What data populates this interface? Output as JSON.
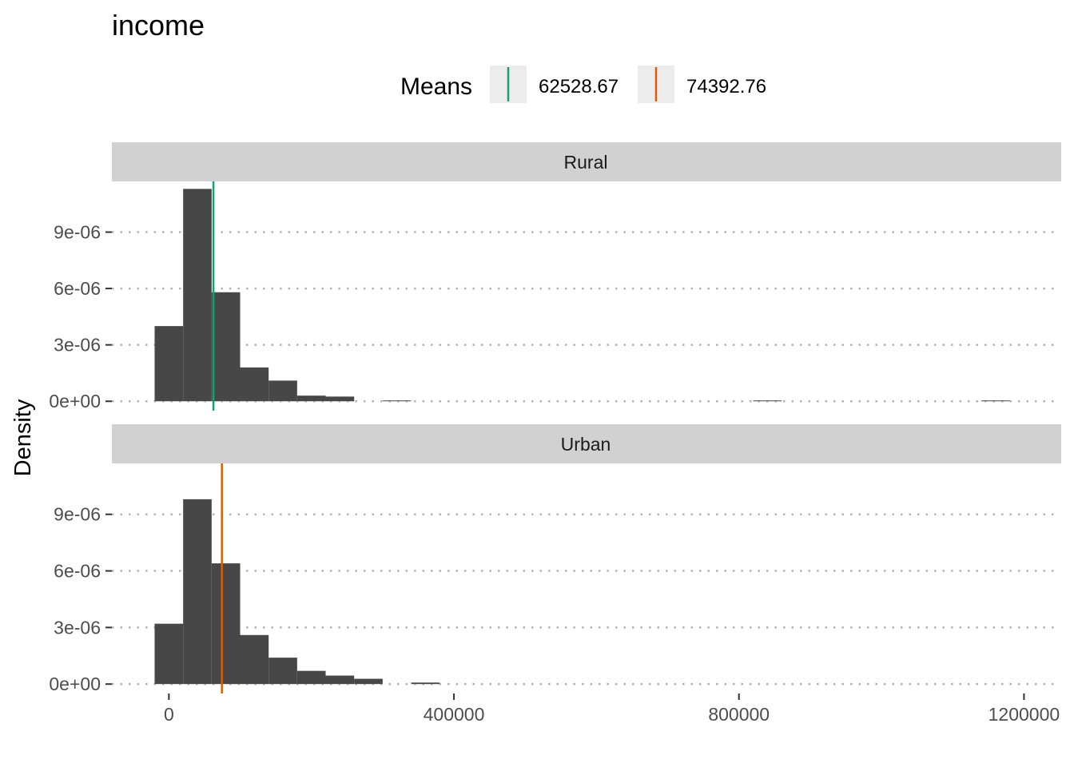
{
  "chart_data": {
    "type": "bar",
    "title": "income",
    "xlabel": "",
    "ylabel": "Density",
    "xlim": [
      -80000,
      1250000
    ],
    "ylim": [
      -5e-07,
      1.17e-05
    ],
    "x_ticks": [
      0,
      400000,
      800000,
      1200000
    ],
    "x_tick_labels": [
      "0",
      "400000",
      "800000",
      "1200000"
    ],
    "y_ticks": [
      0,
      3e-06,
      6e-06,
      9e-06
    ],
    "y_tick_labels": [
      "0e+00",
      "3e-06",
      "6e-06",
      "9e-06"
    ],
    "bin_width": 40000,
    "bar_color": "#474747",
    "grid": "horizontal dotted",
    "legend": {
      "title": "Means",
      "position": "top",
      "entries": [
        {
          "label": "62528.67",
          "color": "#1b9e77"
        },
        {
          "label": "74392.76",
          "color": "#d95f02"
        }
      ]
    },
    "panels": [
      {
        "name": "Rural",
        "mean": 62528.67,
        "mean_color": "#1b9e77",
        "bins": [
          {
            "x": 0,
            "density": 4e-06
          },
          {
            "x": 40000,
            "density": 1.13e-05
          },
          {
            "x": 80000,
            "density": 5.8e-06
          },
          {
            "x": 120000,
            "density": 1.8e-06
          },
          {
            "x": 160000,
            "density": 1.1e-06
          },
          {
            "x": 200000,
            "density": 3e-07
          },
          {
            "x": 240000,
            "density": 2.5e-07
          },
          {
            "x": 320000,
            "density": 2e-08
          },
          {
            "x": 840000,
            "density": 2e-08
          },
          {
            "x": 1160000,
            "density": 2e-08
          }
        ]
      },
      {
        "name": "Urban",
        "mean": 74392.76,
        "mean_color": "#d95f02",
        "bins": [
          {
            "x": 0,
            "density": 3.2e-06
          },
          {
            "x": 40000,
            "density": 9.8e-06
          },
          {
            "x": 80000,
            "density": 6.4e-06
          },
          {
            "x": 120000,
            "density": 2.6e-06
          },
          {
            "x": 160000,
            "density": 1.4e-06
          },
          {
            "x": 200000,
            "density": 7e-07
          },
          {
            "x": 240000,
            "density": 4.5e-07
          },
          {
            "x": 280000,
            "density": 2.8e-07
          },
          {
            "x": 360000,
            "density": 8e-08
          }
        ]
      }
    ]
  }
}
